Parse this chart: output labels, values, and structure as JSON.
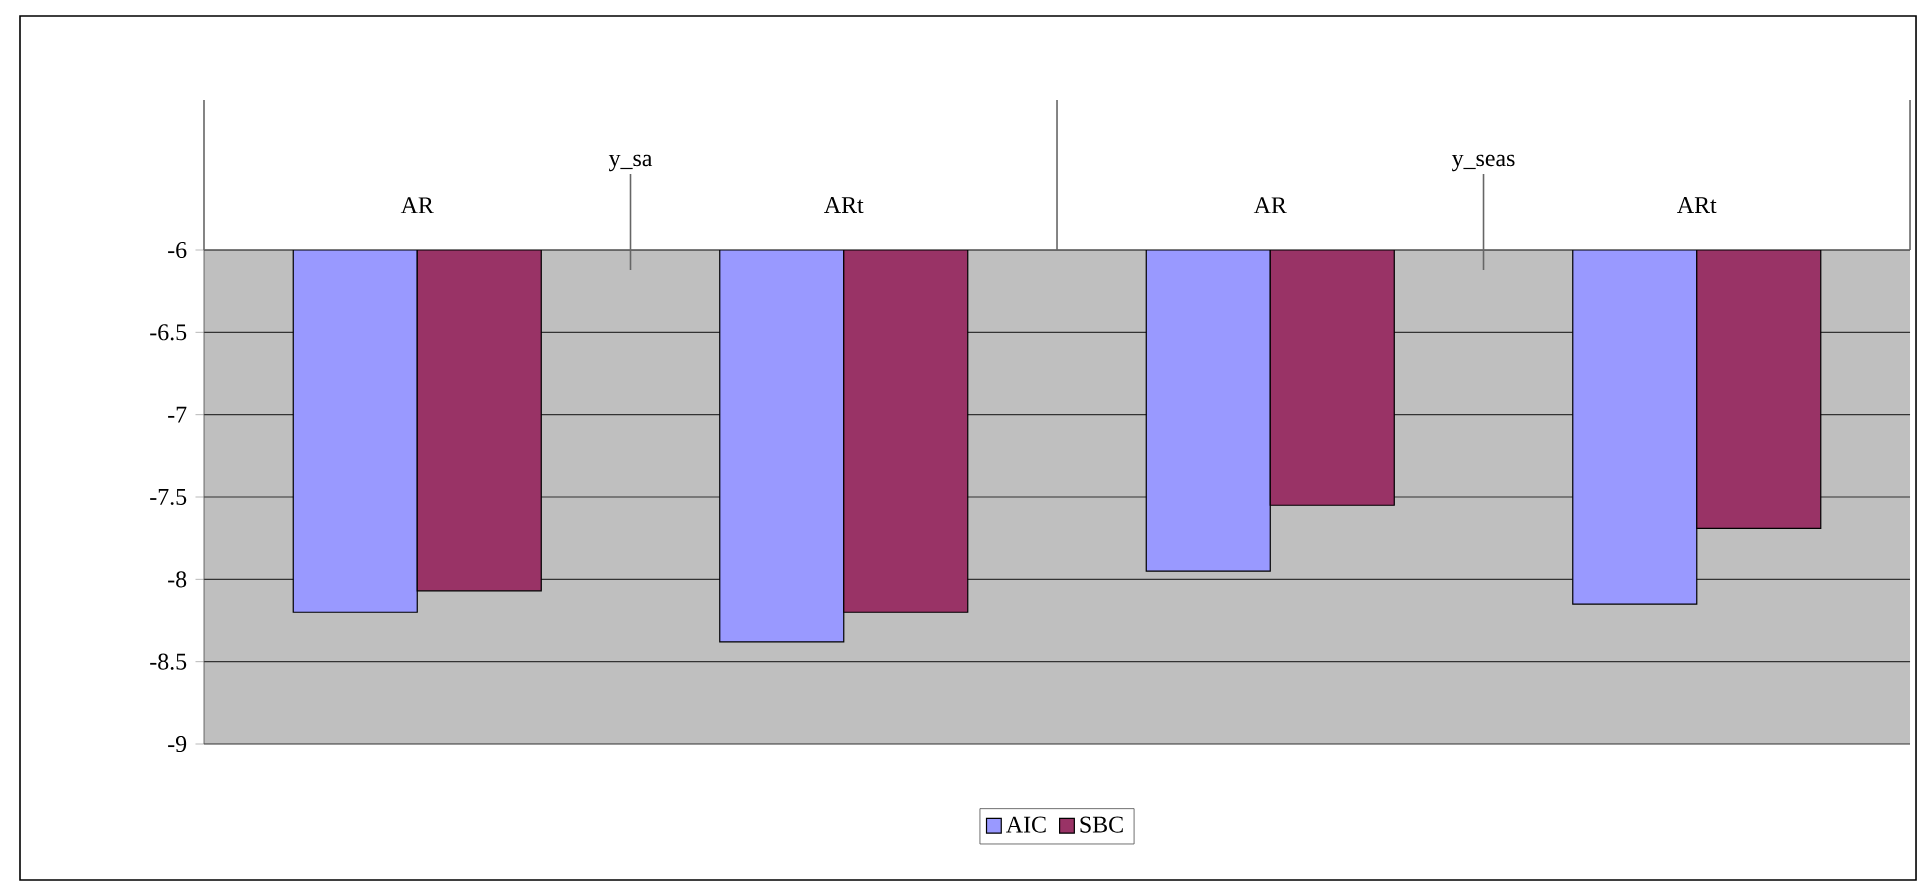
{
  "chart_data": {
    "type": "bar",
    "categories": [
      "AR",
      "ARt",
      "AR",
      "ARt"
    ],
    "annotations": [
      "y_sa",
      "y_seas"
    ],
    "series": [
      {
        "name": "AIC",
        "color": "#9999ff",
        "values": [
          -8.2,
          -8.38,
          -7.95,
          -8.15
        ]
      },
      {
        "name": "SBC",
        "color": "#993366",
        "values": [
          -8.07,
          -8.2,
          -7.55,
          -7.69
        ]
      }
    ],
    "ylim": [
      -9,
      -6
    ],
    "yticks": [
      -9,
      -8.5,
      -8,
      -7.5,
      -7,
      -6.5,
      -6
    ],
    "grid": "y",
    "legend": "bottom"
  }
}
